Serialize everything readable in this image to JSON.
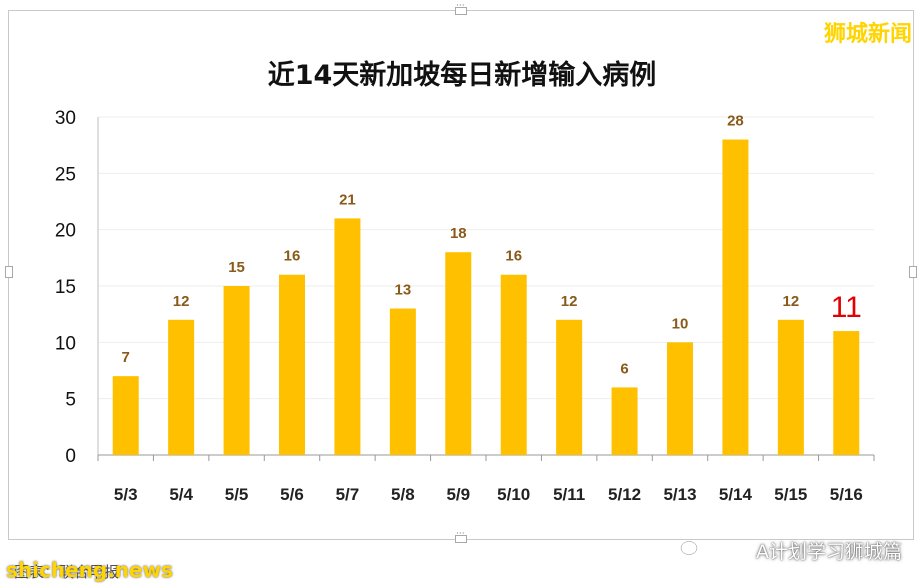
{
  "brand": "狮城新闻",
  "footer": {
    "watermark": "shicheng.news",
    "caption": "图表：联合早报",
    "account": "A计划学习狮城篇"
  },
  "colors": {
    "bar": "#FFC000",
    "highlight_label": "#E30000",
    "data_label": "#8A5A1A"
  },
  "chart_data": {
    "type": "bar",
    "title": "近14天新加坡每日新增输入病例",
    "categories": [
      "5/3",
      "5/4",
      "5/5",
      "5/6",
      "5/7",
      "5/8",
      "5/9",
      "5/10",
      "5/11",
      "5/12",
      "5/13",
      "5/14",
      "5/15",
      "5/16"
    ],
    "values": [
      7,
      12,
      15,
      16,
      21,
      13,
      18,
      16,
      12,
      6,
      10,
      28,
      12,
      11
    ],
    "highlight_index": 13,
    "ylim": [
      0,
      30
    ],
    "yticks": [
      0,
      5,
      10,
      15,
      20,
      25,
      30
    ],
    "grid": true,
    "legend": "none"
  }
}
